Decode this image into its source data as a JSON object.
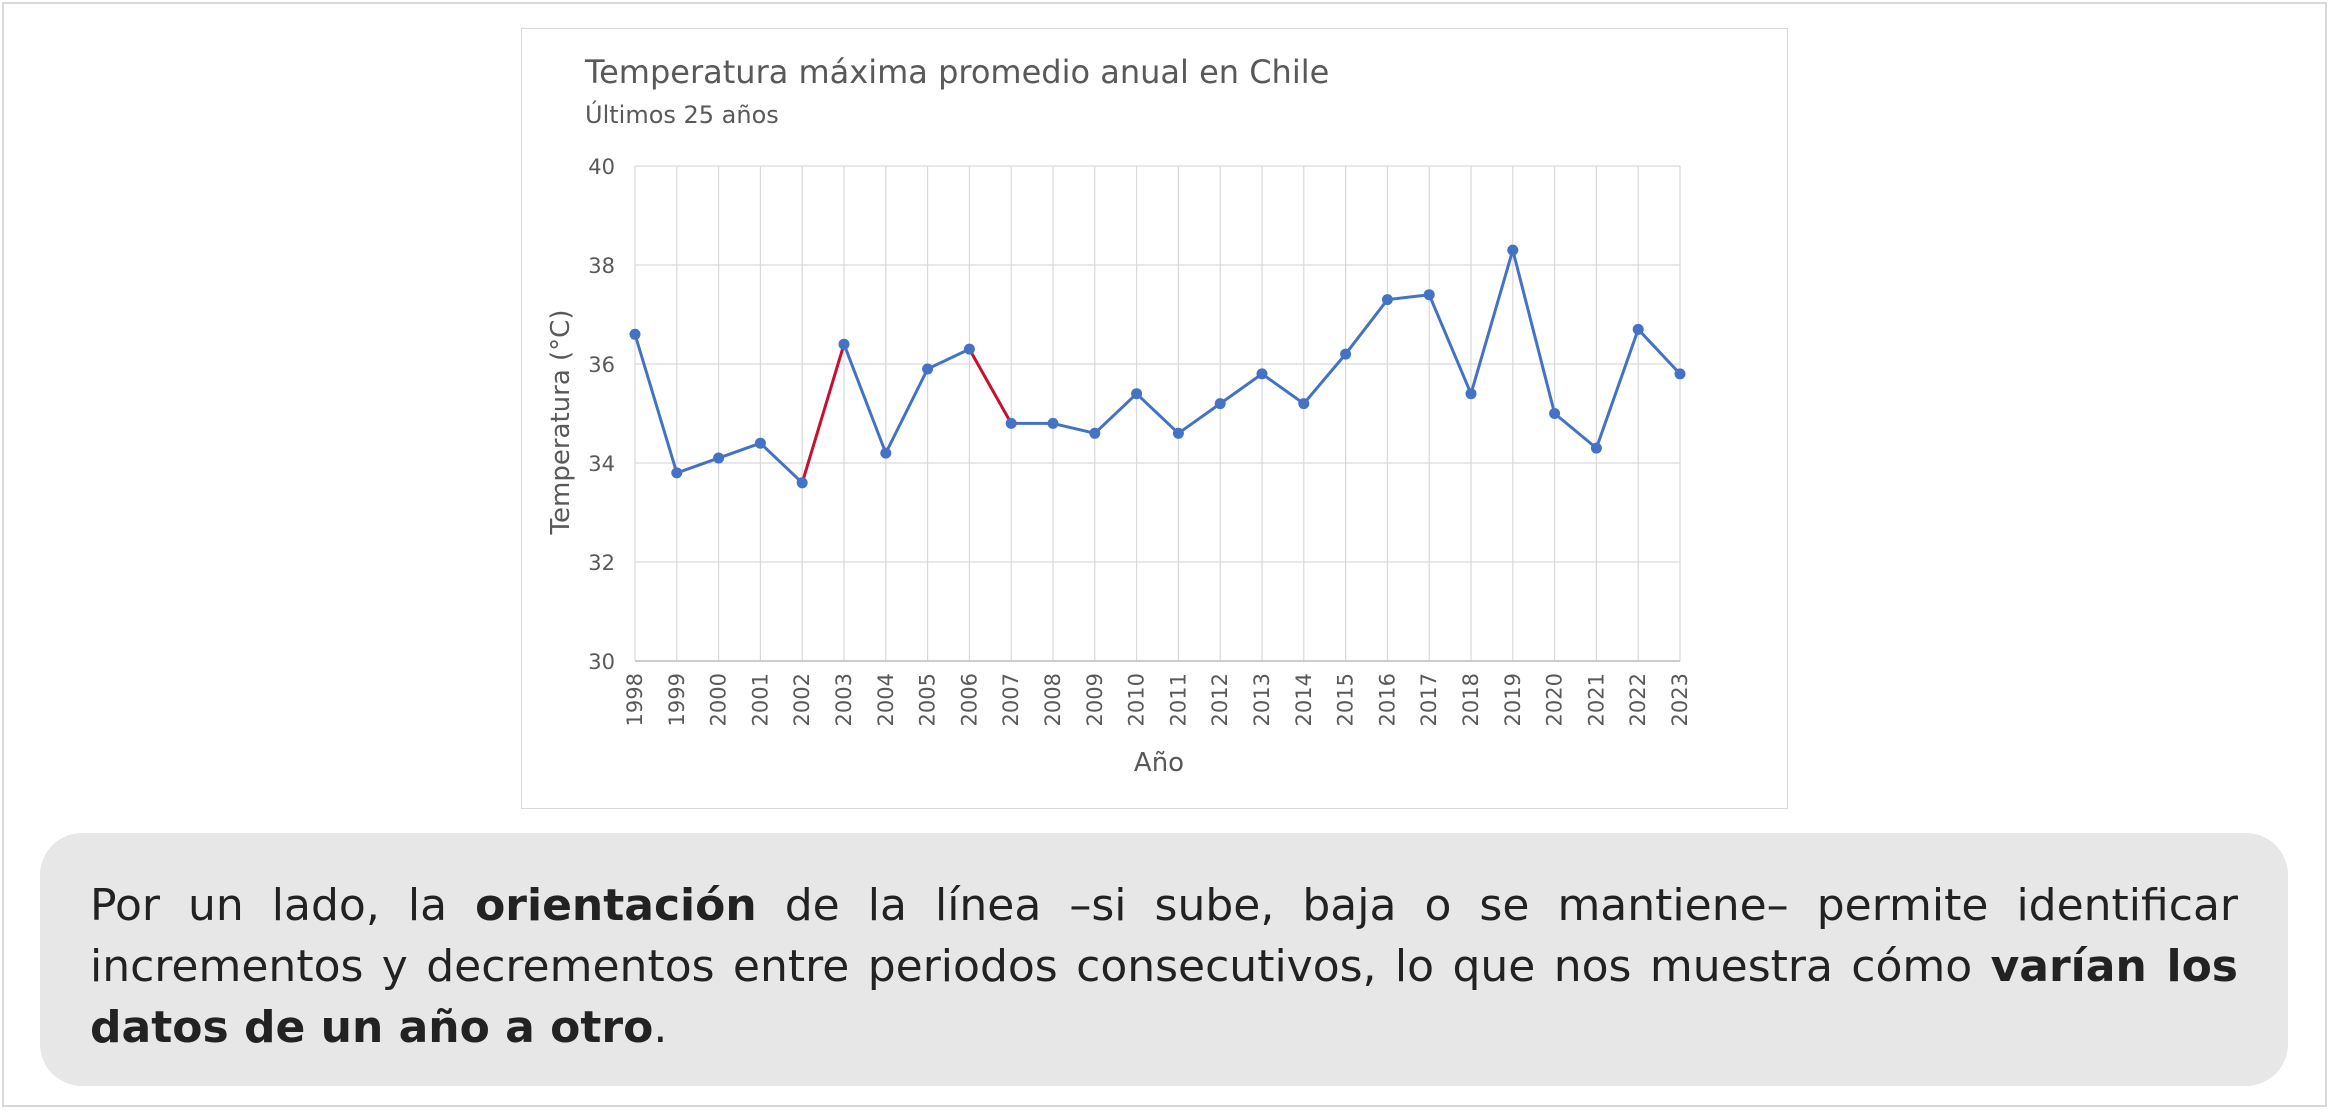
{
  "chart_data": {
    "type": "line",
    "title": "Temperatura máxima promedio anual en Chile",
    "subtitle": "Últimos 25 años",
    "xlabel": "Año",
    "ylabel": "Temperatura (°C)",
    "ylim": [
      30,
      40
    ],
    "yticks": [
      30,
      32,
      34,
      36,
      38,
      40
    ],
    "grid": true,
    "legend": "none",
    "x": [
      "1998",
      "1999",
      "2000",
      "2001",
      "2002",
      "2003",
      "2004",
      "2005",
      "2006",
      "2007",
      "2008",
      "2009",
      "2010",
      "2011",
      "2012",
      "2013",
      "2014",
      "2015",
      "2016",
      "2017",
      "2018",
      "2019",
      "2020",
      "2021",
      "2022",
      "2023"
    ],
    "series": [
      {
        "values": [
          36.6,
          33.8,
          34.1,
          34.4,
          33.6,
          36.4,
          34.2,
          35.9,
          36.3,
          34.8,
          34.8,
          34.6,
          35.4,
          34.6,
          35.2,
          35.8,
          35.2,
          36.2,
          37.3,
          37.4,
          35.4,
          38.3,
          35.0,
          34.3,
          36.7,
          35.8
        ],
        "color": "#4472c4"
      }
    ],
    "highlight_segments": [
      {
        "from": "2002",
        "to": "2003",
        "color": "#c8102e"
      },
      {
        "from": "2006",
        "to": "2007",
        "color": "#c8102e"
      }
    ]
  },
  "caption": {
    "p1": "Por un lado, la ",
    "b1": "orientación",
    "p2": " de la línea –si sube, baja o se mantiene– permite identificar incrementos y decrementos entre periodos consecutivos, lo que nos muestra cómo ",
    "b2": "varían los datos de un año a otro",
    "p3": "."
  },
  "colors": {
    "caption_bg": "#e7e7e7",
    "grid": "#d9d9d9",
    "text": "#595959"
  }
}
